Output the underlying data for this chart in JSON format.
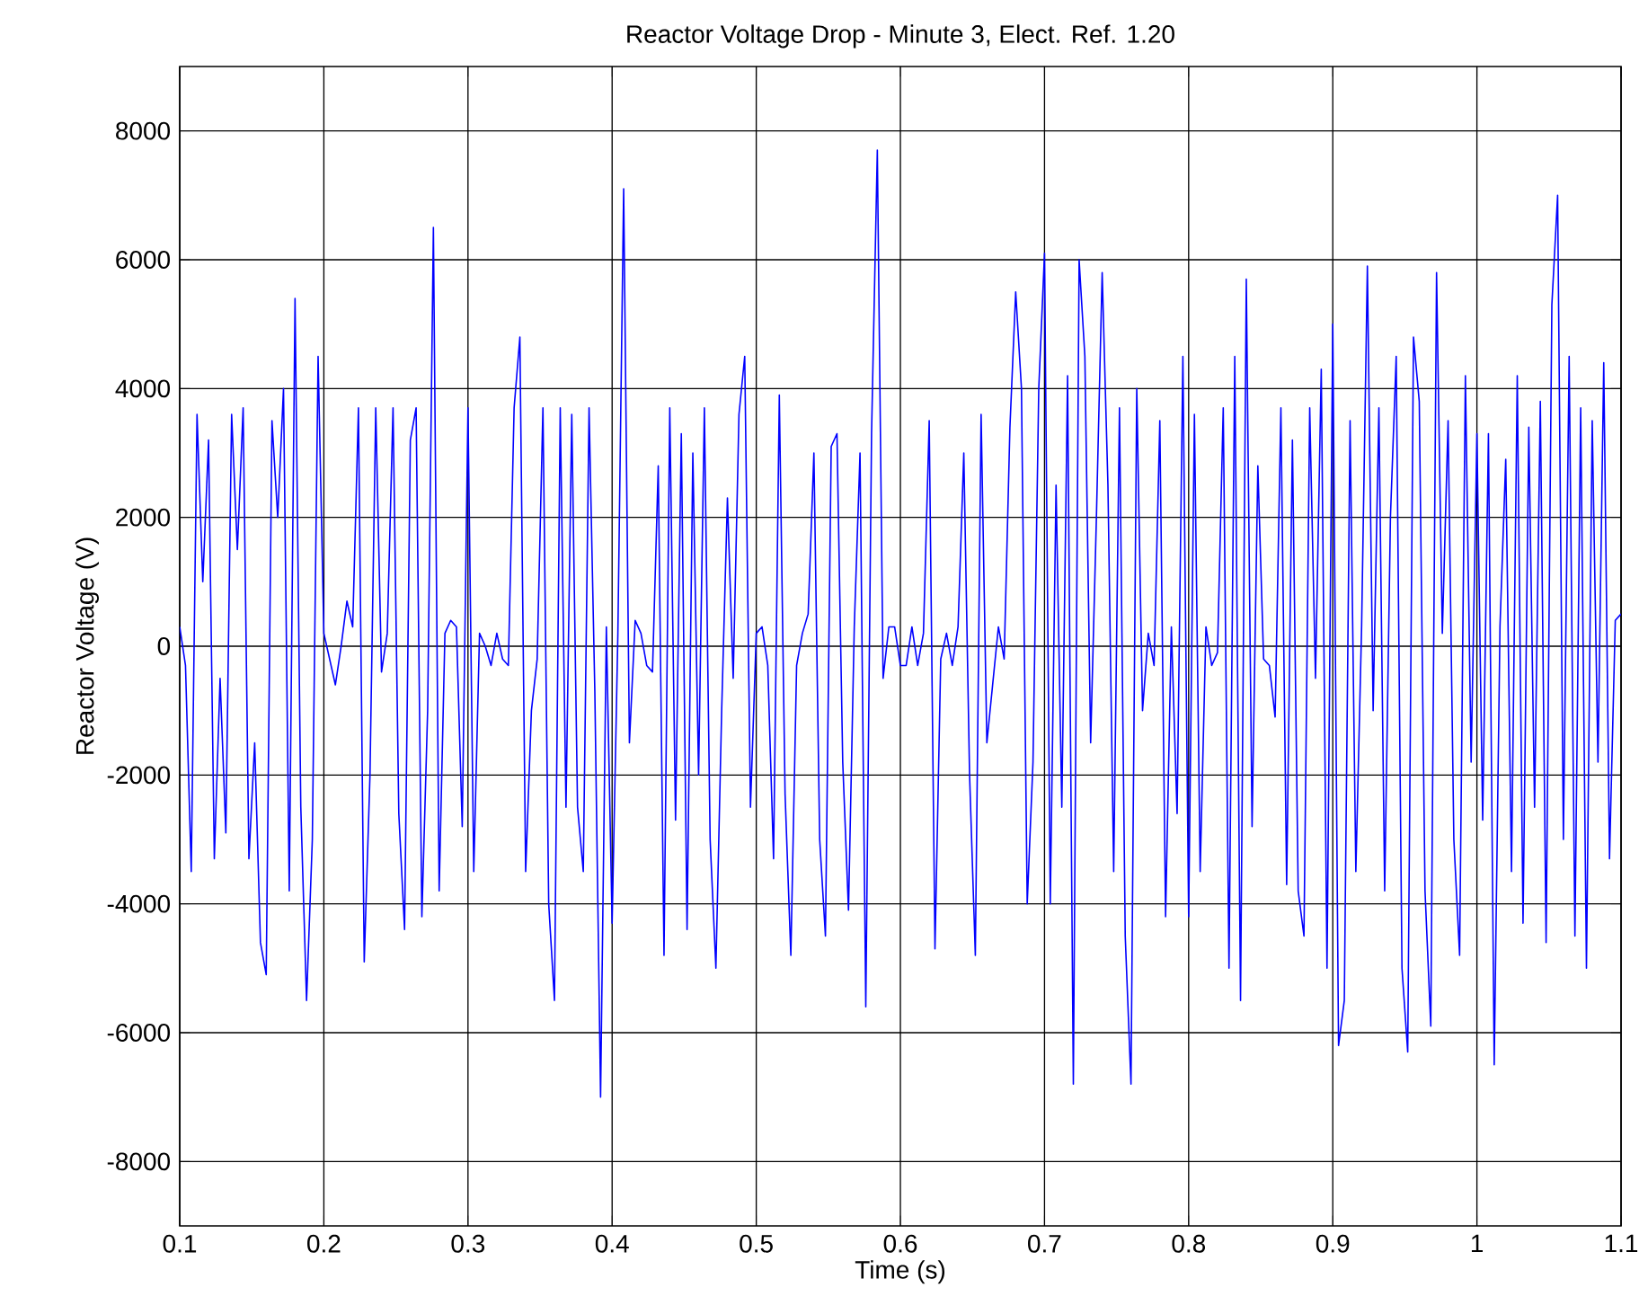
{
  "chart_data": {
    "type": "line",
    "title": "Reactor Voltage Drop - Minute  3, Elect. Ref. 1.20",
    "xlabel": "Time (s)",
    "ylabel": "Reactor Voltage (V)",
    "xlim": [
      0.1,
      1.1
    ],
    "ylim": [
      -9000,
      9000
    ],
    "xticks": [
      0.1,
      0.2,
      0.3,
      0.4,
      0.5,
      0.6,
      0.7,
      0.8,
      0.9,
      1,
      1.1
    ],
    "yticks": [
      -8000,
      -6000,
      -4000,
      -2000,
      0,
      2000,
      4000,
      6000,
      8000
    ],
    "grid": true,
    "line_style": "solid",
    "x": [
      0.1,
      0.104,
      0.108,
      0.112,
      0.116,
      0.12,
      0.124,
      0.128,
      0.132,
      0.136,
      0.14,
      0.144,
      0.148,
      0.152,
      0.156,
      0.16,
      0.164,
      0.168,
      0.172,
      0.176,
      0.18,
      0.184,
      0.188,
      0.192,
      0.196,
      0.2,
      0.204,
      0.208,
      0.212,
      0.216,
      0.22,
      0.224,
      0.228,
      0.232,
      0.236,
      0.24,
      0.244,
      0.248,
      0.252,
      0.256,
      0.26,
      0.264,
      0.268,
      0.272,
      0.276,
      0.28,
      0.284,
      0.288,
      0.292,
      0.296,
      0.3,
      0.304,
      0.308,
      0.312,
      0.316,
      0.32,
      0.324,
      0.328,
      0.332,
      0.336,
      0.34,
      0.344,
      0.348,
      0.352,
      0.356,
      0.36,
      0.364,
      0.368,
      0.372,
      0.376,
      0.38,
      0.384,
      0.388,
      0.392,
      0.396,
      0.4,
      0.404,
      0.408,
      0.412,
      0.416,
      0.42,
      0.424,
      0.428,
      0.432,
      0.436,
      0.44,
      0.444,
      0.448,
      0.452,
      0.456,
      0.46,
      0.464,
      0.468,
      0.472,
      0.476,
      0.48,
      0.484,
      0.488,
      0.492,
      0.496,
      0.5,
      0.504,
      0.508,
      0.512,
      0.516,
      0.52,
      0.524,
      0.528,
      0.532,
      0.536,
      0.54,
      0.544,
      0.548,
      0.552,
      0.556,
      0.56,
      0.564,
      0.568,
      0.572,
      0.576,
      0.58,
      0.584,
      0.588,
      0.592,
      0.596,
      0.6,
      0.604,
      0.608,
      0.612,
      0.616,
      0.62,
      0.624,
      0.628,
      0.632,
      0.636,
      0.64,
      0.644,
      0.648,
      0.652,
      0.656,
      0.66,
      0.664,
      0.668,
      0.672,
      0.676,
      0.68,
      0.684,
      0.688,
      0.692,
      0.696,
      0.7,
      0.704,
      0.708,
      0.712,
      0.716,
      0.72,
      0.724,
      0.728,
      0.732,
      0.736,
      0.74,
      0.744,
      0.748,
      0.752,
      0.756,
      0.76,
      0.764,
      0.768,
      0.772,
      0.776,
      0.78,
      0.784,
      0.788,
      0.792,
      0.796,
      0.8,
      0.804,
      0.808,
      0.812,
      0.816,
      0.82,
      0.824,
      0.828,
      0.832,
      0.836,
      0.84,
      0.844,
      0.848,
      0.852,
      0.856,
      0.86,
      0.864,
      0.868,
      0.872,
      0.876,
      0.88,
      0.884,
      0.888,
      0.892,
      0.896,
      0.9,
      0.904,
      0.908,
      0.912,
      0.916,
      0.92,
      0.924,
      0.928,
      0.932,
      0.936,
      0.94,
      0.944,
      0.948,
      0.952,
      0.956,
      0.96,
      0.964,
      0.968,
      0.972,
      0.976,
      0.98,
      0.984,
      0.988,
      0.992,
      0.996,
      1.0,
      1.004,
      1.008,
      1.012,
      1.016,
      1.02,
      1.024,
      1.028,
      1.032,
      1.036,
      1.04,
      1.044,
      1.048,
      1.052,
      1.056,
      1.06,
      1.064,
      1.068,
      1.072,
      1.076,
      1.08,
      1.084,
      1.088,
      1.092,
      1.096,
      1.1
    ],
    "series": [
      {
        "color": "#0000ff",
        "values": [
          300,
          -300,
          -3500,
          3600,
          1000,
          3200,
          -3300,
          -500,
          -2900,
          3600,
          1500,
          3700,
          -3300,
          -1500,
          -4600,
          -5100,
          3500,
          2000,
          4000,
          -3800,
          5400,
          -2500,
          -5500,
          -3000,
          4500,
          200,
          -200,
          -600,
          0,
          700,
          300,
          3700,
          -4900,
          -2000,
          3700,
          -400,
          200,
          3700,
          -2600,
          -4400,
          3200,
          3700,
          -4200,
          -1000,
          6500,
          -3800,
          200,
          400,
          300,
          -2800,
          3700,
          -3500,
          200,
          0,
          -300,
          200,
          -200,
          -300,
          3700,
          4800,
          -3500,
          -1000,
          -200,
          3700,
          -4000,
          -5500,
          3700,
          -2500,
          3600,
          -2500,
          -3500,
          3700,
          -700,
          -7000,
          300,
          -4300,
          200,
          7100,
          -1500,
          400,
          200,
          -300,
          -400,
          2800,
          -4800,
          3700,
          -2700,
          3300,
          -4400,
          3000,
          -2000,
          3700,
          -3000,
          -5000,
          -1000,
          2300,
          -500,
          3600,
          4500,
          -2500,
          200,
          300,
          -300,
          -3300,
          3900,
          -2300,
          -4800,
          -300,
          200,
          500,
          3000,
          -3000,
          -4500,
          3100,
          3300,
          -1800,
          -4100,
          300,
          3000,
          -5600,
          3300,
          7700,
          -500,
          300,
          300,
          -300,
          -300,
          300,
          -300,
          200,
          3500,
          -4700,
          -200,
          200,
          -300,
          300,
          3000,
          -2000,
          -4800,
          3600,
          -1500,
          -600,
          300,
          -200,
          3400,
          5500,
          4000,
          -4000,
          -1800,
          4000,
          6100,
          -4000,
          2500,
          -2500,
          4200,
          -6800,
          6000,
          4500,
          -1500,
          2000,
          5800,
          2500,
          -3500,
          3700,
          -4500,
          -6800,
          4000,
          -1000,
          200,
          -300,
          3500,
          -4200,
          300,
          -2600,
          4500,
          -4200,
          3600,
          -3500,
          300,
          -300,
          -100,
          3700,
          -5000,
          4500,
          -5500,
          5700,
          -2800,
          2800,
          -200,
          -300,
          -1100,
          3700,
          -3700,
          3200,
          -3800,
          -4500,
          3700,
          -500,
          4300,
          -5000,
          5000,
          -6200,
          -5500,
          3500,
          -3500,
          300,
          5900,
          -1000,
          3700,
          -3800,
          2000,
          4500,
          -5000,
          -6300,
          4800,
          3800,
          -3800,
          -5900,
          5800,
          200,
          3500,
          -3000,
          -4800,
          4200,
          -1800,
          3300,
          -2700,
          3300,
          -6500,
          300,
          2900,
          -3500,
          4200,
          -4300,
          3400,
          -2500,
          3800,
          -4600,
          5300,
          7000,
          -3000,
          4500,
          -4500,
          3700,
          -5000,
          3500,
          -1800,
          4400,
          -3300,
          400,
          500
        ]
      }
    ]
  }
}
